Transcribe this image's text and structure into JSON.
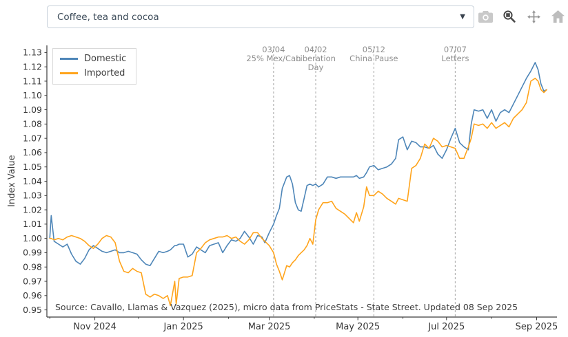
{
  "toolbar": {
    "dropdown_value": "Coffee, tea and cocoa",
    "icons": [
      {
        "name": "camera-icon",
        "color": "#c9c9c9"
      },
      {
        "name": "box-zoom-icon",
        "color": "#4a4a4a"
      },
      {
        "name": "pan-icon",
        "color": "#949494"
      },
      {
        "name": "home-icon",
        "color": "#bdbdbd"
      }
    ]
  },
  "chart_data": {
    "type": "line",
    "title": "",
    "xlabel": "",
    "ylabel": "Index Value",
    "grid": false,
    "legend_position": "top-left",
    "xlim": [
      "2024-09-29",
      "2025-09-15"
    ],
    "ylim": [
      0.945,
      1.135
    ],
    "y_ticks": [
      0.95,
      0.96,
      0.97,
      0.98,
      0.99,
      1.0,
      1.01,
      1.02,
      1.03,
      1.04,
      1.05,
      1.06,
      1.07,
      1.08,
      1.09,
      1.1,
      1.11,
      1.12,
      1.13
    ],
    "x_ticks": [
      {
        "date": "2024-11-01",
        "label": "Nov 2024"
      },
      {
        "date": "2025-01-01",
        "label": "Jan 2025"
      },
      {
        "date": "2025-03-01",
        "label": "Mar 2025"
      },
      {
        "date": "2025-05-01",
        "label": "May 2025"
      },
      {
        "date": "2025-07-01",
        "label": "Jul 2025"
      },
      {
        "date": "2025-09-01",
        "label": "Sep 2025"
      }
    ],
    "x_minor_ticks": [
      "2024-10-01",
      "2024-12-01",
      "2025-02-01",
      "2025-04-01",
      "2025-06-01",
      "2025-08-01"
    ],
    "annotations": [
      {
        "date": "2025-03-04",
        "date_label": "03/04",
        "label_lines": [
          "25% Mex/Can"
        ]
      },
      {
        "date": "2025-04-02",
        "date_label": "04/02",
        "label_lines": [
          "Liberation",
          "Day"
        ]
      },
      {
        "date": "2025-05-12",
        "date_label": "05/12",
        "label_lines": [
          "China Pause"
        ]
      },
      {
        "date": "2025-07-07",
        "date_label": "07/07",
        "label_lines": [
          "Letters"
        ]
      }
    ],
    "annotation_line_color": "#b3b3b3",
    "source_note": "Source: Cavallo, Llamas & Vazquez (2025), micro data from PriceStats - State Street. Updated 08 Sep 2025",
    "x": [
      "2024-10-01",
      "2024-10-02",
      "2024-10-04",
      "2024-10-07",
      "2024-10-10",
      "2024-10-13",
      "2024-10-16",
      "2024-10-19",
      "2024-10-22",
      "2024-10-25",
      "2024-10-28",
      "2024-10-31",
      "2024-11-03",
      "2024-11-06",
      "2024-11-09",
      "2024-11-12",
      "2024-11-15",
      "2024-11-18",
      "2024-11-21",
      "2024-11-24",
      "2024-11-27",
      "2024-11-30",
      "2024-12-03",
      "2024-12-06",
      "2024-12-09",
      "2024-12-12",
      "2024-12-15",
      "2024-12-18",
      "2024-12-21",
      "2024-12-23",
      "2024-12-26",
      "2024-12-27",
      "2024-12-29",
      "2025-01-01",
      "2025-01-04",
      "2025-01-07",
      "2025-01-10",
      "2025-01-13",
      "2025-01-16",
      "2025-01-19",
      "2025-01-22",
      "2025-01-25",
      "2025-01-28",
      "2025-01-31",
      "2025-02-03",
      "2025-02-06",
      "2025-02-09",
      "2025-02-12",
      "2025-02-15",
      "2025-02-18",
      "2025-02-21",
      "2025-02-24",
      "2025-02-26",
      "2025-03-01",
      "2025-03-04",
      "2025-03-06",
      "2025-03-08",
      "2025-03-10",
      "2025-03-13",
      "2025-03-15",
      "2025-03-17",
      "2025-03-19",
      "2025-03-21",
      "2025-03-23",
      "2025-03-25",
      "2025-03-27",
      "2025-03-29",
      "2025-03-31",
      "2025-04-02",
      "2025-04-04",
      "2025-04-07",
      "2025-04-10",
      "2025-04-13",
      "2025-04-16",
      "2025-04-19",
      "2025-04-22",
      "2025-04-25",
      "2025-04-28",
      "2025-04-30",
      "2025-05-02",
      "2025-05-05",
      "2025-05-07",
      "2025-05-09",
      "2025-05-12",
      "2025-05-15",
      "2025-05-18",
      "2025-05-21",
      "2025-05-24",
      "2025-05-27",
      "2025-05-29",
      "2025-06-01",
      "2025-06-04",
      "2025-06-07",
      "2025-06-10",
      "2025-06-13",
      "2025-06-16",
      "2025-06-19",
      "2025-06-22",
      "2025-06-25",
      "2025-06-28",
      "2025-07-01",
      "2025-07-04",
      "2025-07-07",
      "2025-07-10",
      "2025-07-13",
      "2025-07-16",
      "2025-07-18",
      "2025-07-20",
      "2025-07-23",
      "2025-07-26",
      "2025-07-29",
      "2025-08-01",
      "2025-08-04",
      "2025-08-07",
      "2025-08-10",
      "2025-08-13",
      "2025-08-16",
      "2025-08-19",
      "2025-08-22",
      "2025-08-25",
      "2025-08-28",
      "2025-08-31",
      "2025-09-02",
      "2025-09-04",
      "2025-09-06",
      "2025-09-08"
    ],
    "series": [
      {
        "name": "Domestic",
        "color": "#4e86b8",
        "values": [
          1.0,
          1.016,
          0.998,
          0.996,
          0.994,
          0.996,
          0.989,
          0.984,
          0.982,
          0.986,
          0.992,
          0.995,
          0.993,
          0.991,
          0.99,
          0.991,
          0.992,
          0.99,
          0.99,
          0.991,
          0.99,
          0.989,
          0.985,
          0.982,
          0.981,
          0.986,
          0.991,
          0.99,
          0.991,
          0.992,
          0.995,
          0.995,
          0.996,
          0.996,
          0.987,
          0.989,
          0.994,
          0.992,
          0.99,
          0.995,
          0.996,
          0.997,
          0.99,
          0.995,
          0.999,
          0.998,
          1.0,
          1.005,
          1.001,
          0.996,
          1.002,
          1.001,
          0.997,
          1.004,
          1.01,
          1.016,
          1.021,
          1.035,
          1.043,
          1.044,
          1.038,
          1.025,
          1.02,
          1.019,
          1.028,
          1.037,
          1.038,
          1.037,
          1.038,
          1.036,
          1.038,
          1.043,
          1.043,
          1.042,
          1.043,
          1.043,
          1.043,
          1.043,
          1.044,
          1.042,
          1.043,
          1.046,
          1.05,
          1.051,
          1.048,
          1.049,
          1.05,
          1.052,
          1.056,
          1.069,
          1.071,
          1.062,
          1.068,
          1.067,
          1.064,
          1.064,
          1.063,
          1.065,
          1.059,
          1.056,
          1.062,
          1.07,
          1.077,
          1.067,
          1.064,
          1.062,
          1.08,
          1.09,
          1.089,
          1.09,
          1.084,
          1.09,
          1.082,
          1.088,
          1.09,
          1.088,
          1.094,
          1.1,
          1.106,
          1.112,
          1.117,
          1.123,
          1.118,
          1.108,
          1.103,
          1.104
        ]
      },
      {
        "name": "Imported",
        "color": "#ffa41c",
        "values": [
          1.0,
          1.0,
          0.999,
          1.0,
          0.999,
          1.001,
          1.002,
          1.001,
          1.0,
          0.998,
          0.995,
          0.993,
          0.996,
          1.0,
          1.002,
          1.001,
          0.997,
          0.984,
          0.977,
          0.976,
          0.979,
          0.977,
          0.976,
          0.961,
          0.959,
          0.961,
          0.96,
          0.958,
          0.96,
          0.953,
          0.97,
          0.954,
          0.972,
          0.973,
          0.973,
          0.974,
          0.99,
          0.993,
          0.997,
          0.999,
          1.0,
          1.001,
          1.001,
          1.002,
          1.0,
          1.001,
          0.998,
          0.996,
          0.999,
          1.004,
          1.004,
          1.0,
          0.998,
          0.995,
          0.99,
          0.982,
          0.977,
          0.971,
          0.981,
          0.98,
          0.983,
          0.985,
          0.988,
          0.99,
          0.992,
          0.995,
          1.0,
          0.996,
          1.013,
          1.02,
          1.025,
          1.025,
          1.026,
          1.021,
          1.019,
          1.017,
          1.014,
          1.011,
          1.018,
          1.012,
          1.022,
          1.036,
          1.03,
          1.03,
          1.033,
          1.031,
          1.028,
          1.026,
          1.024,
          1.028,
          1.027,
          1.026,
          1.049,
          1.051,
          1.056,
          1.066,
          1.063,
          1.07,
          1.068,
          1.064,
          1.065,
          1.064,
          1.063,
          1.056,
          1.056,
          1.064,
          1.07,
          1.08,
          1.079,
          1.08,
          1.077,
          1.081,
          1.077,
          1.079,
          1.081,
          1.078,
          1.084,
          1.087,
          1.09,
          1.095,
          1.11,
          1.112,
          1.11,
          1.104,
          1.102,
          1.104
        ]
      }
    ]
  }
}
